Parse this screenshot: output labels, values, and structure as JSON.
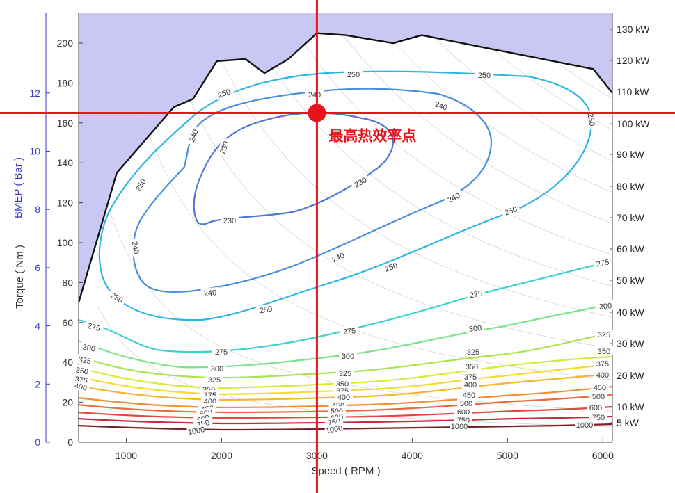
{
  "chart_data": {
    "type": "contour",
    "xlabel": "Speed ( RPM )",
    "ylabel": "Torque ( Nm )",
    "y2label": "BMEP ( Bar )",
    "xlim": [
      500,
      6100
    ],
    "ylim": [
      0,
      215
    ],
    "x_ticks": [
      "1000",
      "2000",
      "3000",
      "4000",
      "5000",
      "6000"
    ],
    "y_ticks": [
      "0",
      "20",
      "40",
      "60",
      "80",
      "100",
      "120",
      "140",
      "160",
      "180",
      "200"
    ],
    "bmep_ticks": [
      "0",
      "2",
      "4",
      "6",
      "8",
      "10",
      "12"
    ],
    "power_labels": [
      "5 kW",
      "10 kW",
      "20 kW",
      "30 kW",
      "40 kW",
      "50 kW",
      "60 kW",
      "70 kW",
      "80 kW",
      "90 kW",
      "100 kW",
      "110 kW",
      "120 kW",
      "130 kW"
    ],
    "max_torque_curve": {
      "x": [
        500,
        900,
        1500,
        1700,
        1950,
        2250,
        2450,
        2700,
        3000,
        3300,
        3800,
        4100,
        5900,
        6100
      ],
      "y": [
        70,
        135,
        168,
        172,
        191,
        192,
        185,
        192,
        205,
        204,
        200,
        204,
        187,
        175
      ]
    },
    "contour_levels": [
      {
        "label": "230",
        "color": "#4a78d2"
      },
      {
        "label": "240",
        "color": "#4a8fdc"
      },
      {
        "label": "250",
        "color": "#2cb6e4"
      },
      {
        "label": "275",
        "color": "#38d2d0"
      },
      {
        "label": "300",
        "color": "#7ce28c"
      },
      {
        "label": "325",
        "color": "#a6e64a"
      },
      {
        "label": "350",
        "color": "#d6ea34"
      },
      {
        "label": "375",
        "color": "#f2dc2c"
      },
      {
        "label": "400",
        "color": "#f6b62a"
      },
      {
        "label": "450",
        "color": "#f68c30"
      },
      {
        "label": "500",
        "color": "#ef6a36"
      },
      {
        "label": "600",
        "color": "#e2483c"
      },
      {
        "label": "750",
        "color": "#c42c3c"
      },
      {
        "label": "1000",
        "color": "#7a1e28"
      }
    ],
    "highlight": {
      "x": 3000,
      "y": 165,
      "label": "最高热效率点"
    }
  },
  "colors": {
    "background_region": "#c9c8f5",
    "crosshair": "#e8141b",
    "bmep_axis": "#3a3ad0"
  }
}
